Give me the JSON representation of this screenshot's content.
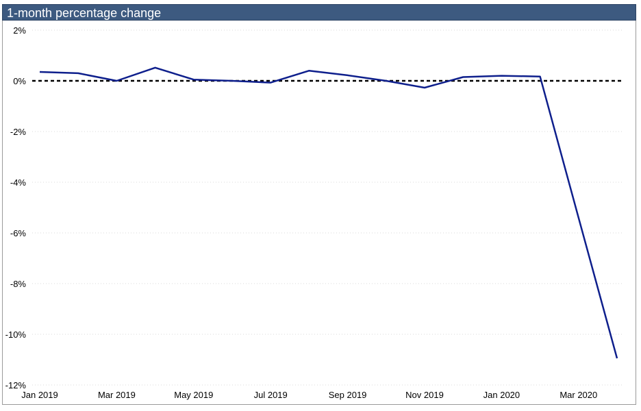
{
  "chart_data": {
    "type": "line",
    "title": "1-month percentage change",
    "xlabel": "",
    "ylabel": "",
    "x": [
      "Jan 2019",
      "Feb 2019",
      "Mar 2019",
      "Apr 2019",
      "May 2019",
      "Jun 2019",
      "Jul 2019",
      "Aug 2019",
      "Sep 2019",
      "Oct 2019",
      "Nov 2019",
      "Dec 2019",
      "Jan 2020",
      "Feb 2020",
      "Mar 2020",
      "Apr 2020"
    ],
    "x_tick_labels": [
      "Jan 2019",
      "Mar 2019",
      "May 2019",
      "Jul 2019",
      "Sep 2019",
      "Nov 2019",
      "Jan 2020",
      "Mar 2020"
    ],
    "series": [
      {
        "values": [
          0.35,
          0.3,
          0.0,
          0.52,
          0.05,
          0.0,
          -0.07,
          0.4,
          0.22,
          0.0,
          -0.27,
          0.15,
          0.2,
          0.17,
          -5.4,
          -10.95
        ],
        "color": "#0e1f8c"
      }
    ],
    "ylim": [
      -12,
      2
    ],
    "y_tick_labels": [
      "2%",
      "0%",
      "-2%",
      "-4%",
      "-6%",
      "-8%",
      "-10%",
      "-12%"
    ],
    "y_ticks": [
      2,
      0,
      -2,
      -4,
      -6,
      -8,
      -10,
      -12
    ],
    "reference_line": {
      "y": 0,
      "style": "dashed",
      "color": "#000000"
    },
    "grid": true,
    "legend": "none"
  },
  "colors": {
    "title_background": "#3d5a80",
    "title_text": "#ffffff",
    "line": "#0e1f8c",
    "gridline": "#d9d9d9"
  }
}
